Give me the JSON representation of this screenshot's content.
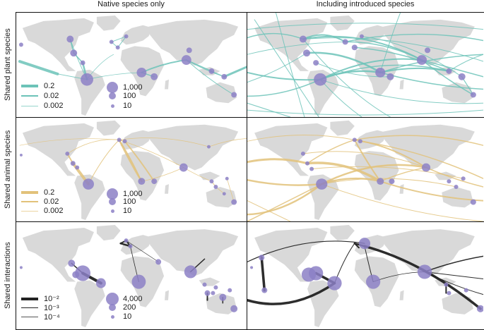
{
  "columns": [
    "Native species only",
    "Including introduced species"
  ],
  "rows": [
    {
      "label": "Shared plant species",
      "color": "#6cc3b8",
      "line_legend": [
        "0.2",
        "0.02",
        "0.002"
      ],
      "node_legend": [
        "1,000",
        "100",
        "10"
      ]
    },
    {
      "label": "Shared animal species",
      "color": "#e2c27a",
      "line_legend": [
        "0.2",
        "0.02",
        "0.002"
      ],
      "node_legend": [
        "1,000",
        "100",
        "10"
      ]
    },
    {
      "label": "Shared interactions",
      "color": "#222222",
      "line_legend": [
        "10⁻²",
        "10⁻³",
        "10⁻⁴"
      ],
      "node_legend": [
        "4,000",
        "200",
        "10"
      ]
    }
  ],
  "colors": {
    "land": "#d9d9d9",
    "node": "#8c80c6"
  }
}
